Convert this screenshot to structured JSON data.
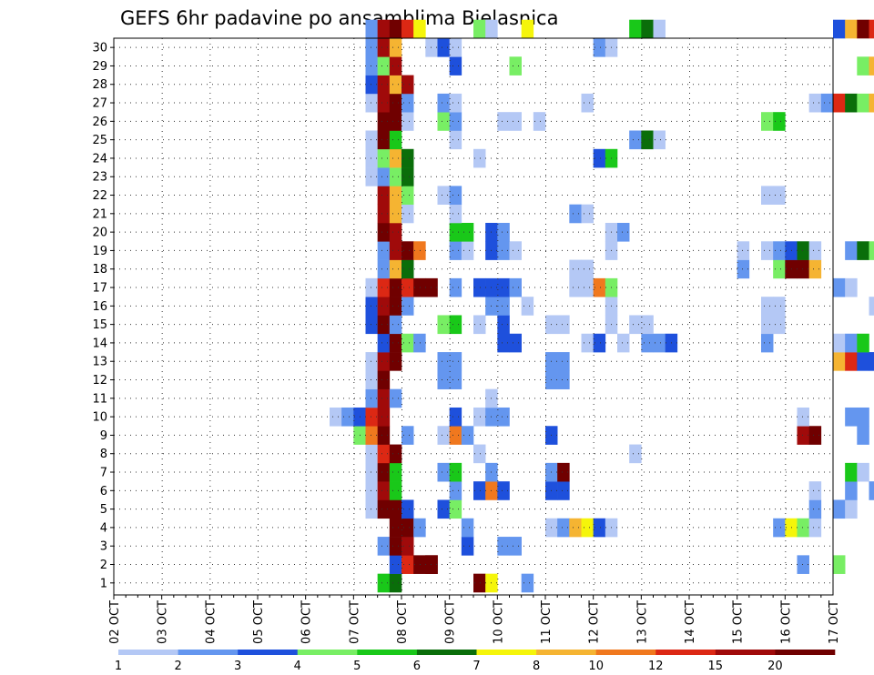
{
  "chart_data": {
    "type": "heatmap",
    "title": "GEFS 6hr padavine po ansamblima Bjelasnica",
    "x_tick_labels": [
      "02 OCT",
      "03 OCT",
      "04 OCT",
      "05 OCT",
      "06 OCT",
      "07 OCT",
      "08 OCT",
      "09 OCT",
      "10 OCT",
      "11 OCT",
      "12 OCT",
      "13 OCT",
      "14 OCT",
      "15 OCT",
      "16 OCT",
      "17 OCT"
    ],
    "y_tick_labels": [
      "1",
      "2",
      "3",
      "4",
      "5",
      "6",
      "7",
      "8",
      "9",
      "10",
      "11",
      "12",
      "13",
      "14",
      "15",
      "16",
      "17",
      "18",
      "19",
      "20",
      "21",
      "22",
      "23",
      "24",
      "25",
      "26",
      "27",
      "28",
      "29",
      "30"
    ],
    "ylim": [
      0,
      30
    ],
    "time_steps_per_day": 4,
    "grid": true,
    "colorbar": {
      "colors": [
        "#b4c8f5",
        "#6496ef",
        "#1e50dc",
        "#78ee64",
        "#19c819",
        "#0a6e0a",
        "#f5f50a",
        "#f5b432",
        "#f0781e",
        "#dc2814",
        "#a00a0a",
        "#700000"
      ],
      "tick_labels": [
        "1",
        "2",
        "3",
        "4",
        "5",
        "6",
        "7",
        "8",
        "10",
        "12",
        "15",
        "20"
      ]
    },
    "cells": [
      [
        0,
        22,
        5
      ],
      [
        0,
        23,
        6
      ],
      [
        0,
        30,
        12
      ],
      [
        0,
        31,
        7
      ],
      [
        0,
        34,
        2
      ],
      [
        1,
        23,
        3
      ],
      [
        1,
        24,
        10
      ],
      [
        1,
        25,
        12
      ],
      [
        1,
        26,
        12
      ],
      [
        1,
        26,
        12
      ],
      [
        1,
        57,
        2
      ],
      [
        1,
        60,
        4
      ],
      [
        2,
        22,
        2
      ],
      [
        2,
        23,
        12
      ],
      [
        2,
        24,
        11
      ],
      [
        2,
        29,
        3
      ],
      [
        2,
        32,
        2
      ],
      [
        2,
        33,
        2
      ],
      [
        2,
        73,
        4
      ],
      [
        2,
        74,
        2
      ],
      [
        3,
        23,
        12
      ],
      [
        3,
        24,
        12
      ],
      [
        3,
        25,
        2
      ],
      [
        3,
        29,
        2
      ],
      [
        3,
        36,
        1
      ],
      [
        3,
        37,
        2
      ],
      [
        3,
        38,
        8
      ],
      [
        3,
        39,
        7
      ],
      [
        3,
        40,
        3
      ],
      [
        3,
        41,
        1
      ],
      [
        3,
        55,
        2
      ],
      [
        3,
        56,
        7
      ],
      [
        3,
        57,
        4
      ],
      [
        3,
        58,
        1
      ],
      [
        3,
        67,
        1
      ],
      [
        4,
        21,
        1
      ],
      [
        4,
        22,
        12
      ],
      [
        4,
        23,
        12
      ],
      [
        4,
        24,
        3
      ],
      [
        4,
        27,
        3
      ],
      [
        4,
        28,
        4
      ],
      [
        4,
        58,
        2
      ],
      [
        4,
        60,
        2
      ],
      [
        4,
        61,
        1
      ],
      [
        4,
        64,
        2
      ],
      [
        4,
        65,
        3
      ],
      [
        4,
        67,
        2
      ],
      [
        5,
        21,
        1
      ],
      [
        5,
        22,
        11
      ],
      [
        5,
        23,
        5
      ],
      [
        5,
        28,
        2
      ],
      [
        5,
        30,
        3
      ],
      [
        5,
        31,
        9
      ],
      [
        5,
        32,
        3
      ],
      [
        5,
        36,
        3
      ],
      [
        5,
        37,
        3
      ],
      [
        5,
        58,
        1
      ],
      [
        5,
        61,
        2
      ],
      [
        5,
        63,
        2
      ],
      [
        5,
        64,
        1
      ],
      [
        5,
        65,
        1
      ],
      [
        5,
        67,
        2
      ],
      [
        5,
        68,
        1
      ],
      [
        6,
        21,
        1
      ],
      [
        6,
        22,
        12
      ],
      [
        6,
        23,
        5
      ],
      [
        6,
        27,
        2
      ],
      [
        6,
        28,
        5
      ],
      [
        6,
        31,
        2
      ],
      [
        6,
        36,
        2
      ],
      [
        6,
        37,
        12
      ],
      [
        6,
        61,
        5
      ],
      [
        6,
        62,
        1
      ],
      [
        7,
        21,
        1
      ],
      [
        7,
        22,
        10
      ],
      [
        7,
        23,
        12
      ],
      [
        7,
        30,
        1
      ],
      [
        7,
        43,
        1
      ],
      [
        8,
        20,
        4
      ],
      [
        8,
        21,
        9
      ],
      [
        8,
        22,
        12
      ],
      [
        8,
        24,
        2
      ],
      [
        8,
        27,
        1
      ],
      [
        8,
        28,
        9
      ],
      [
        8,
        29,
        2
      ],
      [
        8,
        36,
        3
      ],
      [
        8,
        57,
        11
      ],
      [
        8,
        58,
        12
      ],
      [
        8,
        62,
        2
      ],
      [
        9,
        18,
        1
      ],
      [
        9,
        19,
        2
      ],
      [
        9,
        20,
        3
      ],
      [
        9,
        21,
        10
      ],
      [
        9,
        22,
        11
      ],
      [
        9,
        28,
        3
      ],
      [
        9,
        30,
        1
      ],
      [
        9,
        31,
        2
      ],
      [
        9,
        32,
        2
      ],
      [
        9,
        57,
        1
      ],
      [
        9,
        61,
        2
      ],
      [
        9,
        62,
        2
      ],
      [
        10,
        21,
        2
      ],
      [
        10,
        22,
        11
      ],
      [
        10,
        23,
        2
      ],
      [
        10,
        31,
        1
      ],
      [
        10,
        66,
        2
      ],
      [
        11,
        21,
        1
      ],
      [
        11,
        22,
        12
      ],
      [
        11,
        27,
        2
      ],
      [
        11,
        28,
        2
      ],
      [
        11,
        36,
        2
      ],
      [
        11,
        37,
        2
      ],
      [
        12,
        21,
        1
      ],
      [
        12,
        22,
        11
      ],
      [
        12,
        23,
        12
      ],
      [
        12,
        27,
        2
      ],
      [
        12,
        28,
        2
      ],
      [
        12,
        36,
        2
      ],
      [
        12,
        37,
        2
      ],
      [
        12,
        60,
        8
      ],
      [
        12,
        61,
        10
      ],
      [
        12,
        62,
        3
      ],
      [
        12,
        63,
        3
      ],
      [
        12,
        64,
        9
      ],
      [
        12,
        65,
        2
      ],
      [
        12,
        66,
        2
      ],
      [
        13,
        22,
        3
      ],
      [
        13,
        23,
        12
      ],
      [
        13,
        24,
        4
      ],
      [
        13,
        25,
        2
      ],
      [
        13,
        32,
        3
      ],
      [
        13,
        33,
        3
      ],
      [
        13,
        39,
        1
      ],
      [
        13,
        40,
        3
      ],
      [
        13,
        42,
        1
      ],
      [
        13,
        44,
        2
      ],
      [
        13,
        45,
        2
      ],
      [
        13,
        46,
        3
      ],
      [
        13,
        54,
        2
      ],
      [
        13,
        60,
        1
      ],
      [
        13,
        61,
        2
      ],
      [
        13,
        62,
        5
      ],
      [
        13,
        64,
        2
      ],
      [
        13,
        65,
        1
      ],
      [
        14,
        21,
        3
      ],
      [
        14,
        22,
        12
      ],
      [
        14,
        23,
        2
      ],
      [
        14,
        27,
        4
      ],
      [
        14,
        28,
        5
      ],
      [
        14,
        30,
        1
      ],
      [
        14,
        32,
        3
      ],
      [
        14,
        36,
        1
      ],
      [
        14,
        37,
        1
      ],
      [
        14,
        41,
        1
      ],
      [
        14,
        43,
        1
      ],
      [
        14,
        44,
        1
      ],
      [
        14,
        54,
        1
      ],
      [
        14,
        55,
        1
      ],
      [
        14,
        64,
        1
      ],
      [
        14,
        65,
        2
      ],
      [
        14,
        66,
        1
      ],
      [
        15,
        21,
        3
      ],
      [
        15,
        22,
        11
      ],
      [
        15,
        23,
        12
      ],
      [
        15,
        24,
        2
      ],
      [
        15,
        31,
        2
      ],
      [
        15,
        32,
        2
      ],
      [
        15,
        34,
        1
      ],
      [
        15,
        41,
        1
      ],
      [
        15,
        54,
        1
      ],
      [
        15,
        55,
        1
      ],
      [
        15,
        63,
        1
      ],
      [
        15,
        64,
        1
      ],
      [
        15,
        65,
        1
      ],
      [
        15,
        73,
        1
      ],
      [
        15,
        74,
        3
      ],
      [
        16,
        21,
        1
      ],
      [
        16,
        22,
        10
      ],
      [
        16,
        23,
        12
      ],
      [
        16,
        24,
        10
      ],
      [
        16,
        25,
        12
      ],
      [
        16,
        26,
        12
      ],
      [
        16,
        28,
        2
      ],
      [
        16,
        30,
        3
      ],
      [
        16,
        31,
        3
      ],
      [
        16,
        32,
        3
      ],
      [
        16,
        33,
        2
      ],
      [
        16,
        38,
        1
      ],
      [
        16,
        39,
        1
      ],
      [
        16,
        40,
        9
      ],
      [
        16,
        41,
        4
      ],
      [
        16,
        60,
        2
      ],
      [
        16,
        61,
        1
      ],
      [
        16,
        65,
        3
      ],
      [
        16,
        66,
        2
      ],
      [
        16,
        67,
        12
      ],
      [
        16,
        68,
        2
      ],
      [
        16,
        70,
        3
      ],
      [
        17,
        22,
        2
      ],
      [
        17,
        23,
        8
      ],
      [
        17,
        24,
        6
      ],
      [
        17,
        38,
        1
      ],
      [
        17,
        39,
        1
      ],
      [
        17,
        52,
        2
      ],
      [
        17,
        55,
        4
      ],
      [
        17,
        56,
        12
      ],
      [
        17,
        57,
        12
      ],
      [
        17,
        58,
        8
      ],
      [
        18,
        22,
        2
      ],
      [
        18,
        23,
        11
      ],
      [
        18,
        24,
        12
      ],
      [
        18,
        25,
        9
      ],
      [
        18,
        28,
        2
      ],
      [
        18,
        29,
        1
      ],
      [
        18,
        31,
        3
      ],
      [
        18,
        32,
        2
      ],
      [
        18,
        33,
        1
      ],
      [
        18,
        41,
        1
      ],
      [
        18,
        52,
        1
      ],
      [
        18,
        54,
        1
      ],
      [
        18,
        55,
        2
      ],
      [
        18,
        56,
        3
      ],
      [
        18,
        57,
        6
      ],
      [
        18,
        58,
        1
      ],
      [
        18,
        61,
        2
      ],
      [
        18,
        62,
        6
      ],
      [
        18,
        63,
        4
      ],
      [
        18,
        64,
        1
      ],
      [
        19,
        22,
        12
      ],
      [
        19,
        23,
        11
      ],
      [
        19,
        28,
        5
      ],
      [
        19,
        29,
        5
      ],
      [
        19,
        31,
        3
      ],
      [
        19,
        32,
        2
      ],
      [
        19,
        41,
        1
      ],
      [
        19,
        42,
        2
      ],
      [
        20,
        22,
        11
      ],
      [
        20,
        23,
        8
      ],
      [
        20,
        24,
        1
      ],
      [
        20,
        28,
        1
      ],
      [
        20,
        38,
        2
      ],
      [
        20,
        39,
        1
      ],
      [
        20,
        64,
        1
      ],
      [
        21,
        22,
        11
      ],
      [
        21,
        23,
        8
      ],
      [
        21,
        24,
        4
      ],
      [
        21,
        27,
        1
      ],
      [
        21,
        28,
        2
      ],
      [
        21,
        54,
        1
      ],
      [
        21,
        55,
        1
      ],
      [
        21,
        71,
        11
      ],
      [
        21,
        72,
        11
      ],
      [
        21,
        73,
        4
      ],
      [
        22,
        21,
        1
      ],
      [
        22,
        22,
        2
      ],
      [
        22,
        23,
        4
      ],
      [
        22,
        24,
        6
      ],
      [
        22,
        64,
        1
      ],
      [
        22,
        65,
        9
      ],
      [
        22,
        66,
        2
      ],
      [
        22,
        72,
        2
      ],
      [
        22,
        73,
        2
      ],
      [
        22,
        74,
        2
      ],
      [
        23,
        21,
        1
      ],
      [
        23,
        22,
        4
      ],
      [
        23,
        23,
        8
      ],
      [
        23,
        24,
        6
      ],
      [
        23,
        30,
        1
      ],
      [
        23,
        40,
        3
      ],
      [
        23,
        41,
        5
      ],
      [
        24,
        21,
        1
      ],
      [
        24,
        22,
        12
      ],
      [
        24,
        23,
        5
      ],
      [
        24,
        28,
        1
      ],
      [
        24,
        43,
        2
      ],
      [
        24,
        44,
        6
      ],
      [
        24,
        45,
        1
      ],
      [
        24,
        73,
        1
      ],
      [
        24,
        74,
        1
      ],
      [
        25,
        22,
        12
      ],
      [
        25,
        23,
        12
      ],
      [
        25,
        24,
        1
      ],
      [
        25,
        27,
        4
      ],
      [
        25,
        28,
        2
      ],
      [
        25,
        32,
        1
      ],
      [
        25,
        33,
        1
      ],
      [
        25,
        35,
        1
      ],
      [
        25,
        54,
        4
      ],
      [
        25,
        55,
        5
      ],
      [
        25,
        68,
        3
      ],
      [
        25,
        69,
        3
      ],
      [
        25,
        71,
        2
      ],
      [
        25,
        72,
        3
      ],
      [
        25,
        73,
        3
      ],
      [
        26,
        21,
        1
      ],
      [
        26,
        22,
        11
      ],
      [
        26,
        23,
        12
      ],
      [
        26,
        24,
        2
      ],
      [
        26,
        27,
        2
      ],
      [
        26,
        28,
        1
      ],
      [
        26,
        39,
        1
      ],
      [
        26,
        58,
        1
      ],
      [
        26,
        59,
        2
      ],
      [
        26,
        60,
        10
      ],
      [
        26,
        61,
        6
      ],
      [
        26,
        62,
        4
      ],
      [
        26,
        63,
        8
      ],
      [
        27,
        21,
        3
      ],
      [
        27,
        22,
        11
      ],
      [
        27,
        23,
        8
      ],
      [
        27,
        24,
        11
      ],
      [
        27,
        65,
        10
      ],
      [
        27,
        66,
        9
      ],
      [
        28,
        21,
        2
      ],
      [
        28,
        22,
        4
      ],
      [
        28,
        23,
        11
      ],
      [
        28,
        28,
        3
      ],
      [
        28,
        33,
        4
      ],
      [
        28,
        62,
        4
      ],
      [
        28,
        63,
        8
      ],
      [
        29,
        21,
        2
      ],
      [
        29,
        22,
        11
      ],
      [
        29,
        23,
        8
      ],
      [
        29,
        26,
        1
      ],
      [
        29,
        27,
        3
      ],
      [
        29,
        28,
        1
      ],
      [
        29,
        40,
        2
      ],
      [
        29,
        41,
        1
      ],
      [
        30,
        21,
        2
      ],
      [
        30,
        22,
        11
      ],
      [
        30,
        23,
        12
      ],
      [
        30,
        24,
        10
      ],
      [
        30,
        25,
        7
      ],
      [
        30,
        30,
        4
      ],
      [
        30,
        31,
        1
      ],
      [
        30,
        34,
        7
      ],
      [
        30,
        43,
        5
      ],
      [
        30,
        44,
        6
      ],
      [
        30,
        45,
        1
      ],
      [
        30,
        60,
        3
      ],
      [
        30,
        61,
        8
      ],
      [
        30,
        62,
        12
      ],
      [
        30,
        63,
        10
      ],
      [
        30,
        64,
        2
      ],
      [
        30,
        65,
        3
      ],
      [
        30,
        66,
        1
      ]
    ]
  }
}
